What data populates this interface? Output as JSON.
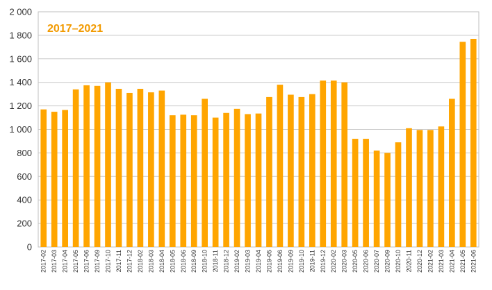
{
  "chart_data": {
    "type": "bar",
    "title": "2017–2021",
    "xlabel": "",
    "ylabel": "",
    "ylim": [
      0,
      2000
    ],
    "y_ticks": [
      0,
      200,
      400,
      600,
      800,
      1000,
      1200,
      1400,
      1600,
      1800,
      2000
    ],
    "y_tick_labels": [
      "0",
      "200",
      "400",
      "600",
      "800",
      "1 000",
      "1 200",
      "1 400",
      "1 600",
      "1 800",
      "2 000"
    ],
    "grid": true,
    "legend": "none",
    "bar_color": "#FFA500",
    "title_color": "#F29A00",
    "categories": [
      "2017-02",
      "2017-03",
      "2017-04",
      "2017-05",
      "2017-06",
      "2017-09",
      "2017-10",
      "2017-11",
      "2017-12",
      "2018-02",
      "2018-03",
      "2018-04",
      "2018-05",
      "2018-06",
      "2018-09",
      "2018-10",
      "2018-11",
      "2018-12",
      "2019-02",
      "2019-03",
      "2019-04",
      "2019-05",
      "2019-06",
      "2019-09",
      "2019-10",
      "2019-11",
      "2019-12",
      "2020-02",
      "2020-03",
      "2020-05",
      "2020-06",
      "2020-07",
      "2020-09",
      "2020-10",
      "2020-11",
      "2020-12",
      "2021-02",
      "2021-03",
      "2021-04",
      "2021-05",
      "2021-06"
    ],
    "values": [
      1170,
      1150,
      1165,
      1340,
      1375,
      1370,
      1400,
      1345,
      1310,
      1345,
      1315,
      1330,
      1120,
      1125,
      1120,
      1260,
      1100,
      1140,
      1175,
      1130,
      1135,
      1275,
      1380,
      1295,
      1275,
      1300,
      1415,
      1415,
      1400,
      920,
      920,
      820,
      800,
      890,
      1010,
      995,
      995,
      1025,
      1260,
      1745,
      1770
    ]
  }
}
